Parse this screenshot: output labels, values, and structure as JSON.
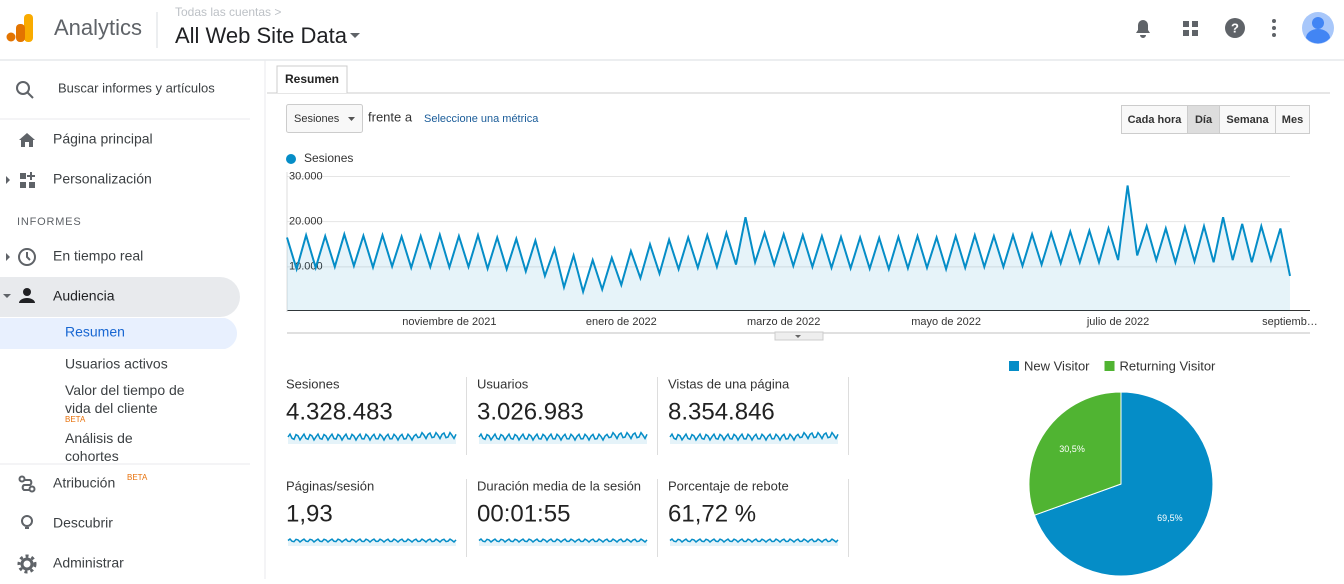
{
  "header": {
    "app": "Analytics",
    "breadcrumb": "Todas las cuentas >",
    "view": "All Web Site Data"
  },
  "sidebar": {
    "search": "Buscar informes y artículos",
    "home": "Página principal",
    "custom": "Personalización",
    "section": "INFORMES",
    "realtime": "En tiempo real",
    "audience": "Audiencia",
    "overview": "Resumen",
    "active_users": "Usuarios activos",
    "lifetime_value": "Valor del tiempo de vida del cliente",
    "lifetime_badge": "BETA",
    "cohorts": "Análisis de cohortes",
    "attribution": "Atribución",
    "attribution_badge": "BETA",
    "discover": "Descubrir",
    "admin": "Administrar"
  },
  "tab": "Resumen",
  "controls": {
    "metric": "Sesiones",
    "versus": "frente a",
    "select_metric": "Seleccione una métrica",
    "periods": [
      "Cada hora",
      "Día",
      "Semana",
      "Mes"
    ],
    "active_period": 1
  },
  "metrics": [
    {
      "label": "Sesiones",
      "value": "4.328.483"
    },
    {
      "label": "Usuarios",
      "value": "3.026.983"
    },
    {
      "label": "Vistas de una página",
      "value": "8.354.846"
    },
    {
      "label": "Páginas/sesión",
      "value": "1,93"
    },
    {
      "label": "Duración media de la sesión",
      "value": "00:01:55"
    },
    {
      "label": "Porcentaje de rebote",
      "value": "61,72 %"
    }
  ],
  "chart_data": [
    {
      "type": "area",
      "categories": [
        null,
        null,
        null,
        null,
        null,
        null,
        null,
        null,
        null,
        null,
        null,
        null,
        null,
        null,
        null,
        null,
        null,
        "noviembre de 2021",
        null,
        null,
        null,
        null,
        null,
        null,
        null,
        null,
        null,
        null,
        null,
        null,
        null,
        null,
        null,
        null,
        null,
        "enero de 2022",
        null,
        null,
        null,
        null,
        null,
        null,
        null,
        null,
        null,
        null,
        null,
        null,
        null,
        null,
        null,
        null,
        "marzo de 2022",
        null,
        null,
        null,
        null,
        null,
        null,
        null,
        null,
        null,
        null,
        null,
        null,
        null,
        null,
        null,
        null,
        "mayo de 2022",
        null,
        null,
        null,
        null,
        null,
        null,
        null,
        null,
        null,
        null,
        null,
        null,
        null,
        null,
        null,
        null,
        null,
        "julio de 2022",
        null,
        null,
        null,
        null,
        null,
        null,
        null,
        null,
        null,
        null,
        null,
        null,
        null,
        null,
        null,
        null,
        null,
        "septiemb…"
      ],
      "series": [
        {
          "name": "Sesiones",
          "color": "#058dc7",
          "values": [
            16500,
            9500,
            17000,
            9800,
            16800,
            10000,
            17200,
            10200,
            16900,
            9900,
            17000,
            10100,
            16700,
            9800,
            16800,
            10000,
            17100,
            9900,
            16800,
            10000,
            17000,
            9600,
            16500,
            9500,
            16200,
            9000,
            15800,
            8000,
            14000,
            5500,
            12500,
            4500,
            11500,
            5000,
            12000,
            6000,
            13500,
            7500,
            15000,
            8500,
            16000,
            9500,
            16500,
            9800,
            17000,
            10000,
            17500,
            10500,
            21000,
            11000,
            17500,
            10500,
            17200,
            10200,
            17000,
            10000,
            16800,
            9800,
            16600,
            9700,
            16500,
            9600,
            16400,
            9500,
            16600,
            9700,
            16800,
            9800,
            16500,
            9500,
            16800,
            9800,
            17000,
            10000,
            16800,
            10000,
            17000,
            10200,
            17200,
            10500,
            17500,
            10800,
            17800,
            11000,
            18000,
            11000,
            18500,
            11500,
            28000,
            12500,
            19000,
            11500,
            18500,
            11000,
            18800,
            11200,
            19000,
            11000,
            21000,
            11500,
            19500,
            11000,
            19000,
            11500,
            18500,
            8000
          ]
        }
      ],
      "ylim": [
        0,
        31000
      ],
      "yticks": [
        {
          "value": 10000,
          "label": "10.000"
        },
        {
          "value": 20000,
          "label": "20.000"
        },
        {
          "value": 30000,
          "label": "30.000"
        }
      ],
      "grid": true
    },
    {
      "type": "pie",
      "categories": [
        "New Visitor",
        "Returning Visitor"
      ],
      "values": [
        69.5,
        30.5
      ],
      "value_labels": [
        "69,5%",
        "30,5%"
      ],
      "colors": [
        "#058dc7",
        "#50b432"
      ]
    }
  ]
}
